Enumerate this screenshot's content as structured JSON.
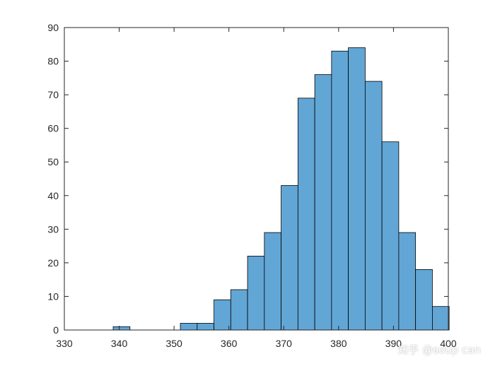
{
  "chart_data": {
    "type": "bar",
    "subtype": "histogram",
    "bin_width": 3.0625,
    "bins": [
      {
        "x0": 338.9,
        "x1": 341.9625,
        "count": 1
      },
      {
        "x0": 341.9625,
        "x1": 345.025,
        "count": 0
      },
      {
        "x0": 345.025,
        "x1": 348.0875,
        "count": 0
      },
      {
        "x0": 348.0875,
        "x1": 351.15,
        "count": 0
      },
      {
        "x0": 351.15,
        "x1": 354.2125,
        "count": 2
      },
      {
        "x0": 354.2125,
        "x1": 357.275,
        "count": 2
      },
      {
        "x0": 357.275,
        "x1": 360.3375,
        "count": 9
      },
      {
        "x0": 360.3375,
        "x1": 363.4,
        "count": 12
      },
      {
        "x0": 363.4,
        "x1": 366.4625,
        "count": 22
      },
      {
        "x0": 366.4625,
        "x1": 369.525,
        "count": 29
      },
      {
        "x0": 369.525,
        "x1": 372.5875,
        "count": 43
      },
      {
        "x0": 372.5875,
        "x1": 375.65,
        "count": 69
      },
      {
        "x0": 375.65,
        "x1": 378.7125,
        "count": 76
      },
      {
        "x0": 378.7125,
        "x1": 381.775,
        "count": 83
      },
      {
        "x0": 381.775,
        "x1": 384.8375,
        "count": 84
      },
      {
        "x0": 384.8375,
        "x1": 387.9,
        "count": 74
      },
      {
        "x0": 387.9,
        "x1": 390.9625,
        "count": 56
      },
      {
        "x0": 390.9625,
        "x1": 394.025,
        "count": 29
      },
      {
        "x0": 394.025,
        "x1": 397.0875,
        "count": 18
      },
      {
        "x0": 397.0875,
        "x1": 400.15,
        "count": 7
      }
    ],
    "xlim": [
      330,
      400
    ],
    "ylim": [
      0,
      90
    ],
    "xticks": [
      330,
      340,
      350,
      360,
      370,
      380,
      390,
      400
    ],
    "yticks": [
      0,
      10,
      20,
      30,
      40,
      50,
      60,
      70,
      80,
      90
    ],
    "title": "",
    "xlabel": "",
    "ylabel": "",
    "grid": false,
    "legend": "none",
    "bar_color": "#62a6d6",
    "edge_color": "#000000"
  },
  "watermark": {
    "text": "知乎 @soup can"
  }
}
